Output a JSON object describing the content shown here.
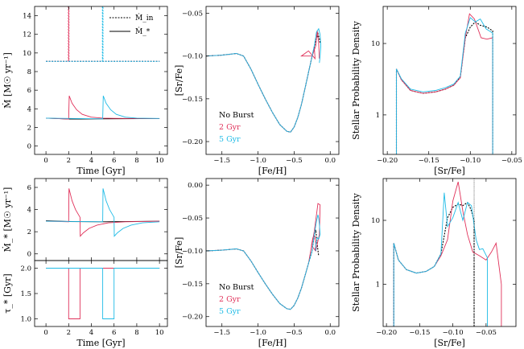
{
  "colors": {
    "none": "#000000",
    "burst2": "#e0315a",
    "burst5": "#1fbbe6"
  },
  "legend_labels": {
    "none": "No Burst",
    "burst2": "2 Gyr",
    "burst5": "5 Gyr"
  },
  "chart_data": [
    {
      "id": "top-left",
      "type": "line",
      "xlabel": "Time [Gyr]",
      "ylabel": "Ṁ [M☉ yr⁻¹]",
      "xlim": [
        -1.0,
        10.7
      ],
      "ylim": [
        -0.9,
        15
      ],
      "xticks": [
        0,
        2,
        4,
        6,
        8,
        10
      ],
      "yticks": [
        0,
        2,
        4,
        6,
        8,
        10,
        12,
        14
      ],
      "legend": {
        "placement": "top-right",
        "entries": [
          {
            "label": "Ṁ_in",
            "style": "dashed"
          },
          {
            "label": "Ṁ_*",
            "style": "solid"
          }
        ]
      },
      "series": [
        {
          "name": "No Burst Ṁ_in",
          "color_key": "none",
          "dash": true,
          "x": [
            0,
            10
          ],
          "y": [
            9.1,
            9.1
          ]
        },
        {
          "name": "2 Gyr Ṁ_in",
          "color_key": "burst2",
          "dash": true,
          "x": [
            0,
            1.98,
            1.98,
            2.02,
            2.02,
            10
          ],
          "y": [
            9.1,
            9.1,
            15,
            15,
            9.1,
            9.1
          ]
        },
        {
          "name": "5 Gyr Ṁ_in",
          "color_key": "burst5",
          "dash": true,
          "x": [
            0,
            4.98,
            4.98,
            5.02,
            5.02,
            10
          ],
          "y": [
            9.1,
            9.1,
            15,
            15,
            9.1,
            9.1
          ]
        },
        {
          "name": "No Burst Ṁ_*",
          "color_key": "none",
          "x": [
            0,
            1,
            2,
            3,
            5,
            10
          ],
          "y": [
            3.0,
            2.95,
            2.9,
            2.9,
            2.92,
            2.95
          ]
        },
        {
          "name": "2 Gyr Ṁ_*",
          "color_key": "burst2",
          "x": [
            0,
            2,
            2.05,
            2.3,
            2.7,
            3.2,
            4,
            5,
            6,
            7,
            10
          ],
          "y": [
            3.0,
            2.9,
            5.4,
            4.6,
            3.9,
            3.4,
            3.1,
            3.0,
            2.97,
            2.96,
            2.95
          ]
        },
        {
          "name": "5 Gyr Ṁ_*",
          "color_key": "burst5",
          "x": [
            0,
            5,
            5.05,
            5.3,
            5.7,
            6.2,
            7,
            8,
            10
          ],
          "y": [
            3.0,
            2.92,
            5.4,
            4.6,
            3.9,
            3.4,
            3.1,
            3.0,
            2.96
          ]
        }
      ]
    },
    {
      "id": "top-middle",
      "type": "line",
      "xlabel": "[Fe/H]",
      "ylabel": "[Sr/Fe]",
      "xlim": [
        -1.72,
        0.12
      ],
      "ylim": [
        -0.215,
        -0.042
      ],
      "xticks": [
        -1.5,
        -1.0,
        -0.5,
        0.0
      ],
      "yticks": [
        -0.2,
        -0.15,
        -0.1,
        -0.05
      ],
      "legend": {
        "placement": "bottom-left",
        "entries": [
          "No Burst",
          "2 Gyr",
          "5 Gyr"
        ]
      },
      "series": [
        {
          "name": "No Burst",
          "color_key": "none",
          "dash": true,
          "x": [
            -1.72,
            -1.5,
            -1.3,
            -1.2,
            -1.1,
            -1.0,
            -0.9,
            -0.8,
            -0.7,
            -0.6,
            -0.55,
            -0.5,
            -0.45,
            -0.4,
            -0.35,
            -0.3,
            -0.25,
            -0.2,
            -0.17,
            -0.15,
            -0.14
          ],
          "y": [
            -0.1,
            -0.099,
            -0.097,
            -0.1,
            -0.115,
            -0.133,
            -0.15,
            -0.166,
            -0.18,
            -0.188,
            -0.189,
            -0.183,
            -0.172,
            -0.157,
            -0.138,
            -0.119,
            -0.1,
            -0.082,
            -0.074,
            -0.08,
            -0.085
          ]
        },
        {
          "name": "2 Gyr",
          "color_key": "burst2",
          "x": [
            -1.72,
            -1.5,
            -1.3,
            -1.2,
            -1.1,
            -1.0,
            -0.9,
            -0.8,
            -0.7,
            -0.6,
            -0.55,
            -0.5,
            -0.45,
            -0.4,
            -0.35,
            -0.3,
            -0.25,
            -0.22,
            -0.21,
            -0.3,
            -0.4,
            -0.35,
            -0.25,
            -0.2,
            -0.18,
            -0.16,
            -0.15
          ],
          "y": [
            -0.1,
            -0.099,
            -0.097,
            -0.1,
            -0.115,
            -0.133,
            -0.15,
            -0.166,
            -0.18,
            -0.188,
            -0.189,
            -0.183,
            -0.172,
            -0.157,
            -0.138,
            -0.119,
            -0.1,
            -0.09,
            -0.103,
            -0.094,
            -0.1,
            -0.1,
            -0.1,
            -0.088,
            -0.07,
            -0.085,
            -0.103
          ]
        },
        {
          "name": "5 Gyr",
          "color_key": "burst5",
          "x": [
            -1.72,
            -1.5,
            -1.3,
            -1.2,
            -1.1,
            -1.0,
            -0.9,
            -0.8,
            -0.7,
            -0.6,
            -0.55,
            -0.5,
            -0.45,
            -0.4,
            -0.35,
            -0.3,
            -0.25,
            -0.22,
            -0.19,
            -0.16,
            -0.14,
            -0.13,
            -0.14,
            -0.15
          ],
          "y": [
            -0.1,
            -0.099,
            -0.097,
            -0.1,
            -0.115,
            -0.133,
            -0.15,
            -0.166,
            -0.18,
            -0.188,
            -0.189,
            -0.183,
            -0.172,
            -0.157,
            -0.138,
            -0.119,
            -0.1,
            -0.088,
            -0.072,
            -0.068,
            -0.075,
            -0.088,
            -0.1,
            -0.108
          ]
        }
      ]
    },
    {
      "id": "top-right",
      "type": "line",
      "log_y": true,
      "xlabel": "[Sr/Fe]",
      "ylabel": "Stellar Probability Density",
      "xlim": [
        -0.205,
        -0.045
      ],
      "ylim": [
        0.28,
        33
      ],
      "xticks": [
        -0.2,
        -0.15,
        -0.1,
        -0.05
      ],
      "yticks": [
        1,
        10
      ],
      "series": [
        {
          "name": "No Burst",
          "color_key": "none",
          "dash": true,
          "x": [
            -0.189,
            -0.189,
            -0.183,
            -0.172,
            -0.157,
            -0.142,
            -0.13,
            -0.12,
            -0.112,
            -0.106,
            -0.1,
            -0.094,
            -0.088,
            -0.08,
            -0.073,
            -0.073
          ],
          "y": [
            0.28,
            4.4,
            3.1,
            2.2,
            2.0,
            2.1,
            2.3,
            2.6,
            3.4,
            12,
            17,
            20,
            18,
            17,
            15,
            0.28
          ]
        },
        {
          "name": "2 Gyr",
          "color_key": "burst2",
          "x": [
            -0.189,
            -0.189,
            -0.183,
            -0.172,
            -0.157,
            -0.142,
            -0.13,
            -0.12,
            -0.112,
            -0.106,
            -0.101,
            -0.095,
            -0.087,
            -0.08,
            -0.073,
            -0.073
          ],
          "y": [
            0.28,
            4.4,
            3.1,
            2.2,
            2.0,
            2.1,
            2.3,
            2.6,
            3.3,
            12,
            26,
            22,
            12,
            11.5,
            12,
            0.28
          ]
        },
        {
          "name": "5 Gyr",
          "color_key": "burst5",
          "x": [
            -0.189,
            -0.189,
            -0.183,
            -0.172,
            -0.157,
            -0.142,
            -0.13,
            -0.12,
            -0.112,
            -0.106,
            -0.1,
            -0.094,
            -0.088,
            -0.081,
            -0.073,
            -0.073
          ],
          "y": [
            0.28,
            4.4,
            3.2,
            2.3,
            2.1,
            2.2,
            2.4,
            2.7,
            3.5,
            14,
            23,
            20,
            22,
            16,
            14,
            0.28
          ]
        }
      ]
    },
    {
      "id": "bottom-left-upper",
      "type": "line",
      "xlabel": "",
      "ylabel": "Ṁ_* [M☉ yr⁻¹]",
      "xlim": [
        -1.0,
        10.7
      ],
      "ylim": [
        -0.6,
        6.8
      ],
      "xticks": [
        0,
        2,
        4,
        6,
        8,
        10
      ],
      "yticks": [
        0,
        2,
        4,
        6
      ],
      "series": [
        {
          "name": "No Burst",
          "color_key": "none",
          "x": [
            0,
            2,
            5,
            10
          ],
          "y": [
            3.0,
            2.92,
            2.9,
            2.95
          ]
        },
        {
          "name": "2 Gyr",
          "color_key": "burst2",
          "x": [
            0,
            2,
            2.03,
            2.3,
            2.6,
            3.0,
            3.02,
            3.3,
            3.8,
            4.5,
            5.5,
            7,
            10
          ],
          "y": [
            2.95,
            2.9,
            5.9,
            4.8,
            4.0,
            3.3,
            1.6,
            1.9,
            2.3,
            2.6,
            2.8,
            2.9,
            2.95
          ]
        },
        {
          "name": "5 Gyr",
          "color_key": "burst5",
          "x": [
            0,
            5,
            5.03,
            5.3,
            5.6,
            6.0,
            6.02,
            6.3,
            6.8,
            7.5,
            8.5,
            10
          ],
          "y": [
            2.95,
            2.9,
            5.9,
            4.8,
            4.0,
            3.3,
            1.6,
            1.9,
            2.3,
            2.6,
            2.8,
            2.9
          ]
        }
      ]
    },
    {
      "id": "bottom-left-lower",
      "type": "line",
      "xlabel": "Time [Gyr]",
      "ylabel": "τ_* [Gyr]",
      "xlim": [
        -1.0,
        10.7
      ],
      "ylim": [
        0.85,
        2.15
      ],
      "xticks": [
        0,
        2,
        4,
        6,
        8,
        10
      ],
      "yticks": [
        1.0,
        1.5,
        2.0
      ],
      "series": [
        {
          "name": "No Burst",
          "color_key": "none",
          "x": [
            0,
            10
          ],
          "y": [
            2.0,
            2.0
          ]
        },
        {
          "name": "2 Gyr",
          "color_key": "burst2",
          "x": [
            0,
            2,
            2,
            3,
            3,
            10
          ],
          "y": [
            2.0,
            2.0,
            1.0,
            1.0,
            2.0,
            2.0
          ]
        },
        {
          "name": "5 Gyr",
          "color_key": "burst5",
          "x": [
            0,
            5,
            5,
            6,
            6,
            10
          ],
          "y": [
            2.0,
            2.0,
            1.0,
            1.0,
            2.0,
            2.0
          ]
        }
      ]
    },
    {
      "id": "bottom-middle",
      "type": "line",
      "xlabel": "[Fe/H]",
      "ylabel": "[Sr/Fe]",
      "xlim": [
        -1.72,
        0.12
      ],
      "ylim": [
        -0.215,
        0.01
      ],
      "xticks": [
        -1.5,
        -1.0,
        -0.5,
        0.0
      ],
      "yticks": [
        -0.2,
        -0.15,
        -0.1,
        -0.05,
        0.0
      ],
      "legend": {
        "placement": "bottom-left",
        "entries": [
          "No Burst",
          "2 Gyr",
          "5 Gyr"
        ]
      },
      "series": [
        {
          "name": "No Burst",
          "color_key": "none",
          "dash": true,
          "x": [
            -1.72,
            -1.5,
            -1.3,
            -1.2,
            -1.1,
            -1.0,
            -0.9,
            -0.8,
            -0.7,
            -0.6,
            -0.55,
            -0.5,
            -0.45,
            -0.4,
            -0.35,
            -0.3,
            -0.25,
            -0.22,
            -0.2,
            -0.18,
            -0.16
          ],
          "y": [
            -0.1,
            -0.099,
            -0.097,
            -0.1,
            -0.115,
            -0.133,
            -0.15,
            -0.166,
            -0.18,
            -0.188,
            -0.189,
            -0.183,
            -0.172,
            -0.157,
            -0.138,
            -0.119,
            -0.1,
            -0.075,
            -0.068,
            -0.09,
            -0.108
          ]
        },
        {
          "name": "2 Gyr",
          "color_key": "burst2",
          "x": [
            -1.72,
            -1.5,
            -1.3,
            -1.2,
            -1.1,
            -1.0,
            -0.9,
            -0.8,
            -0.7,
            -0.6,
            -0.55,
            -0.5,
            -0.45,
            -0.4,
            -0.35,
            -0.3,
            -0.27,
            -0.22,
            -0.17,
            -0.14,
            -0.15,
            -0.2,
            -0.26,
            -0.24,
            -0.21,
            -0.2,
            -0.21
          ],
          "y": [
            -0.1,
            -0.099,
            -0.097,
            -0.1,
            -0.115,
            -0.133,
            -0.15,
            -0.166,
            -0.18,
            -0.188,
            -0.189,
            -0.183,
            -0.172,
            -0.157,
            -0.138,
            -0.119,
            -0.1,
            -0.07,
            -0.028,
            -0.03,
            -0.075,
            -0.1,
            -0.092,
            -0.08,
            -0.078,
            -0.09,
            -0.1
          ]
        },
        {
          "name": "5 Gyr",
          "color_key": "burst5",
          "x": [
            -1.72,
            -1.5,
            -1.3,
            -1.2,
            -1.1,
            -1.0,
            -0.9,
            -0.8,
            -0.7,
            -0.6,
            -0.55,
            -0.5,
            -0.45,
            -0.4,
            -0.35,
            -0.3,
            -0.25,
            -0.22,
            -0.19,
            -0.17,
            -0.16,
            -0.15,
            -0.14,
            -0.16,
            -0.18,
            -0.2,
            -0.2
          ],
          "y": [
            -0.1,
            -0.099,
            -0.097,
            -0.1,
            -0.115,
            -0.133,
            -0.15,
            -0.166,
            -0.18,
            -0.188,
            -0.189,
            -0.183,
            -0.172,
            -0.157,
            -0.138,
            -0.119,
            -0.1,
            -0.075,
            -0.055,
            -0.045,
            -0.05,
            -0.06,
            -0.075,
            -0.082,
            -0.08,
            -0.09,
            -0.1
          ]
        }
      ]
    },
    {
      "id": "bottom-right",
      "type": "line",
      "log_y": true,
      "xlabel": "[Sr/Fe]",
      "ylabel": "Stellar Probability Density",
      "xlim": [
        -0.205,
        -0.005
      ],
      "ylim": [
        0.22,
        45
      ],
      "xticks": [
        -0.2,
        -0.15,
        -0.1,
        -0.05
      ],
      "yticks": [
        1,
        10
      ],
      "vline": {
        "x": -0.068,
        "style": "dotted"
      },
      "series": [
        {
          "name": "No Burst",
          "color_key": "none",
          "dash": true,
          "x": [
            -0.189,
            -0.189,
            -0.182,
            -0.17,
            -0.155,
            -0.14,
            -0.128,
            -0.118,
            -0.108,
            -0.1,
            -0.092,
            -0.085,
            -0.078,
            -0.073,
            -0.068,
            -0.068
          ],
          "y": [
            0.22,
            4.4,
            2.4,
            1.7,
            1.5,
            1.6,
            1.9,
            3.0,
            11,
            16,
            18,
            17,
            19,
            15,
            10,
            0.22
          ]
        },
        {
          "name": "2 Gyr",
          "color_key": "burst2",
          "x": [
            -0.189,
            -0.189,
            -0.182,
            -0.17,
            -0.155,
            -0.14,
            -0.128,
            -0.118,
            -0.108,
            -0.1,
            -0.092,
            -0.085,
            -0.078,
            -0.07,
            -0.06,
            -0.05,
            -0.042,
            -0.035,
            -0.027,
            -0.027
          ],
          "y": [
            0.22,
            4.4,
            2.4,
            1.7,
            1.5,
            1.6,
            1.9,
            2.8,
            5,
            20,
            40,
            14,
            6,
            3.2,
            2.8,
            2.4,
            3.2,
            4.4,
            1.0,
            0.22
          ]
        },
        {
          "name": "5 Gyr",
          "color_key": "burst5",
          "x": [
            -0.189,
            -0.189,
            -0.182,
            -0.17,
            -0.155,
            -0.14,
            -0.128,
            -0.118,
            -0.113,
            -0.108,
            -0.1,
            -0.092,
            -0.085,
            -0.078,
            -0.072,
            -0.065,
            -0.06,
            -0.055,
            -0.048,
            -0.048
          ],
          "y": [
            0.22,
            4.4,
            2.4,
            1.7,
            1.5,
            1.6,
            1.9,
            3.0,
            27,
            8,
            11,
            19,
            10,
            19,
            17,
            5,
            3.5,
            3.6,
            2.6,
            0.22
          ]
        }
      ]
    }
  ]
}
